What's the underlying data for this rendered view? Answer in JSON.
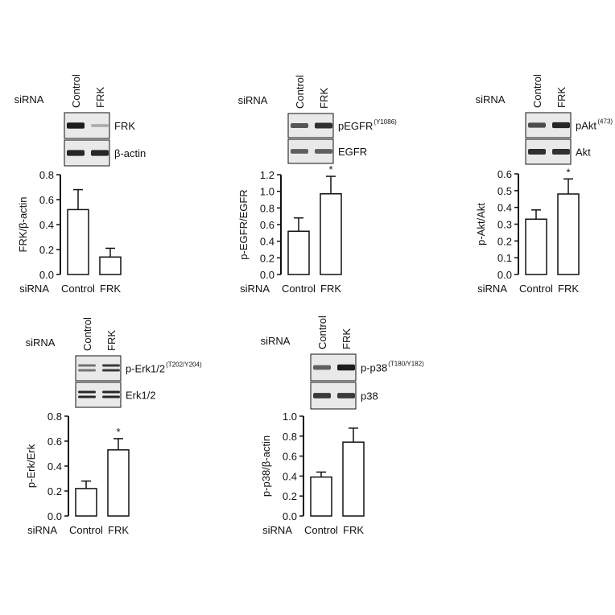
{
  "panels": [
    {
      "id": "frk",
      "rowlabel": "siRNA",
      "lanes": [
        "Control",
        "FRK"
      ],
      "blots": [
        {
          "label": "FRK",
          "sup": "",
          "bands": [
            0.9,
            0.15
          ]
        },
        {
          "label": "β-actin",
          "sup": "",
          "bands": [
            0.85,
            0.85
          ]
        }
      ],
      "ytick_labels": [
        "0.0",
        "0.2",
        "0.4",
        "0.6",
        "0.8"
      ],
      "xlabel_prefix": "siRNA",
      "star": ""
    },
    {
      "id": "egfr",
      "rowlabel": "siRNA",
      "lanes": [
        "Control",
        "FRK"
      ],
      "blots": [
        {
          "label": "pEGFR",
          "sup": "(Y1086)",
          "bands": [
            0.6,
            0.8
          ]
        },
        {
          "label": "EGFR",
          "sup": "",
          "bands": [
            0.55,
            0.55
          ]
        }
      ],
      "ytick_labels": [
        "0.0",
        "0.2",
        "0.4",
        "0.6",
        "0.8",
        "1.0",
        "1.2"
      ],
      "xlabel_prefix": "siRNA",
      "star": "*"
    },
    {
      "id": "akt",
      "rowlabel": "siRNA",
      "lanes": [
        "Control",
        "FRK"
      ],
      "blots": [
        {
          "label": "pAkt",
          "sup": "(473)",
          "bands": [
            0.65,
            0.85
          ]
        },
        {
          "label": "Akt",
          "sup": "",
          "bands": [
            0.8,
            0.8
          ]
        }
      ],
      "ytick_labels": [
        "0.0",
        "0.1",
        "0.2",
        "0.3",
        "0.4",
        "0.5",
        "0.6"
      ],
      "xlabel_prefix": "siRNA",
      "star": "*"
    },
    {
      "id": "erk",
      "rowlabel": "siRNA",
      "lanes": [
        "Control",
        "FRK"
      ],
      "blots": [
        {
          "label": "p-Erk1/2",
          "sup": "(T202/Y204)",
          "bands": [
            0.45,
            0.75
          ],
          "double": true
        },
        {
          "label": "Erk1/2",
          "sup": "",
          "bands": [
            0.85,
            0.85
          ],
          "double": true
        }
      ],
      "ytick_labels": [
        "0.0",
        "0.2",
        "0.4",
        "0.6",
        "0.8"
      ],
      "xlabel_prefix": "siRNA",
      "star": "*"
    },
    {
      "id": "p38",
      "rowlabel": "siRNA",
      "lanes": [
        "Control",
        "FRK"
      ],
      "blots": [
        {
          "label": "p-p38",
          "sup": "(T180/Y182)",
          "bands": [
            0.55,
            0.9
          ]
        },
        {
          "label": "p38",
          "sup": "",
          "bands": [
            0.75,
            0.75
          ]
        }
      ],
      "ytick_labels": [
        "0.0",
        "0.2",
        "0.4",
        "0.6",
        "0.8",
        "1.0"
      ],
      "xlabel_prefix": "siRNA",
      "star": ""
    }
  ],
  "chart_data": [
    {
      "type": "bar",
      "categories": [
        "Control",
        "FRK"
      ],
      "values": [
        0.52,
        0.14
      ],
      "errors": [
        0.16,
        0.07
      ],
      "ylabel": "FRK/β-actin",
      "ylim": [
        0,
        0.8
      ]
    },
    {
      "type": "bar",
      "categories": [
        "Control",
        "FRK"
      ],
      "values": [
        0.52,
        0.97
      ],
      "errors": [
        0.16,
        0.21
      ],
      "ylabel": "p-EGFR/EGFR",
      "ylim": [
        0,
        1.2
      ]
    },
    {
      "type": "bar",
      "categories": [
        "Control",
        "FRK"
      ],
      "values": [
        0.33,
        0.48
      ],
      "errors": [
        0.055,
        0.09
      ],
      "ylabel": "p-Akt/Akt",
      "ylim": [
        0,
        0.6
      ]
    },
    {
      "type": "bar",
      "categories": [
        "Control",
        "FRK"
      ],
      "values": [
        0.22,
        0.53
      ],
      "errors": [
        0.06,
        0.09
      ],
      "ylabel": "p-Erk/Erk",
      "ylim": [
        0,
        0.8
      ]
    },
    {
      "type": "bar",
      "categories": [
        "Control",
        "FRK"
      ],
      "values": [
        0.39,
        0.74
      ],
      "errors": [
        0.05,
        0.14
      ],
      "ylabel": "p-p38/β-actin",
      "ylim": [
        0,
        1.0
      ]
    }
  ]
}
